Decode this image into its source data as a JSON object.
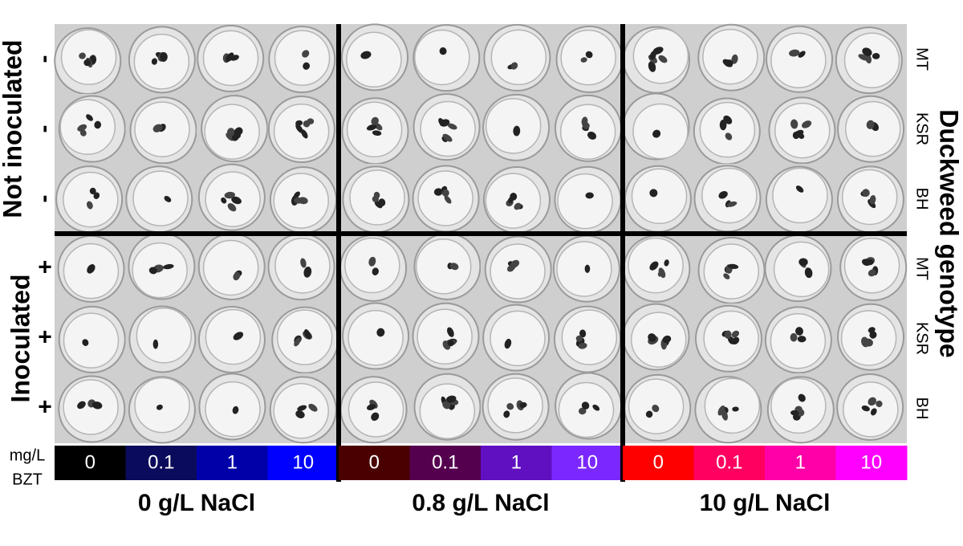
{
  "row_groups": [
    {
      "label": "Not inoculated",
      "rows": [
        {
          "sign": "-",
          "genotype": "MT"
        },
        {
          "sign": "-",
          "genotype": "KSR"
        },
        {
          "sign": "-",
          "genotype": "BH"
        }
      ]
    },
    {
      "label": "Inoculated",
      "rows": [
        {
          "sign": "+",
          "genotype": "MT"
        },
        {
          "sign": "+",
          "genotype": "KSR"
        },
        {
          "sign": "+",
          "genotype": "BH"
        }
      ]
    }
  ],
  "right_title": "Duckweed genotype",
  "bzt_label": [
    "mg/L",
    "BZT"
  ],
  "salt_groups": [
    {
      "label": "0 g/L NaCl",
      "doses": [
        {
          "label": "0",
          "color": "#000000"
        },
        {
          "label": "0.1",
          "color": "#0b0b5c"
        },
        {
          "label": "1",
          "color": "#0000a8"
        },
        {
          "label": "10",
          "color": "#0000ff"
        }
      ]
    },
    {
      "label": "0.8 g/L NaCl",
      "doses": [
        {
          "label": "0",
          "color": "#4a0000"
        },
        {
          "label": "0.1",
          "color": "#55004f"
        },
        {
          "label": "1",
          "color": "#6010c0"
        },
        {
          "label": "10",
          "color": "#7a28ff"
        }
      ]
    },
    {
      "label": "10 g/L NaCl",
      "doses": [
        {
          "label": "0",
          "color": "#ff0000"
        },
        {
          "label": "0.1",
          "color": "#ff0060"
        },
        {
          "label": "1",
          "color": "#ff00a8"
        },
        {
          "label": "10",
          "color": "#ff00ff"
        }
      ]
    }
  ]
}
